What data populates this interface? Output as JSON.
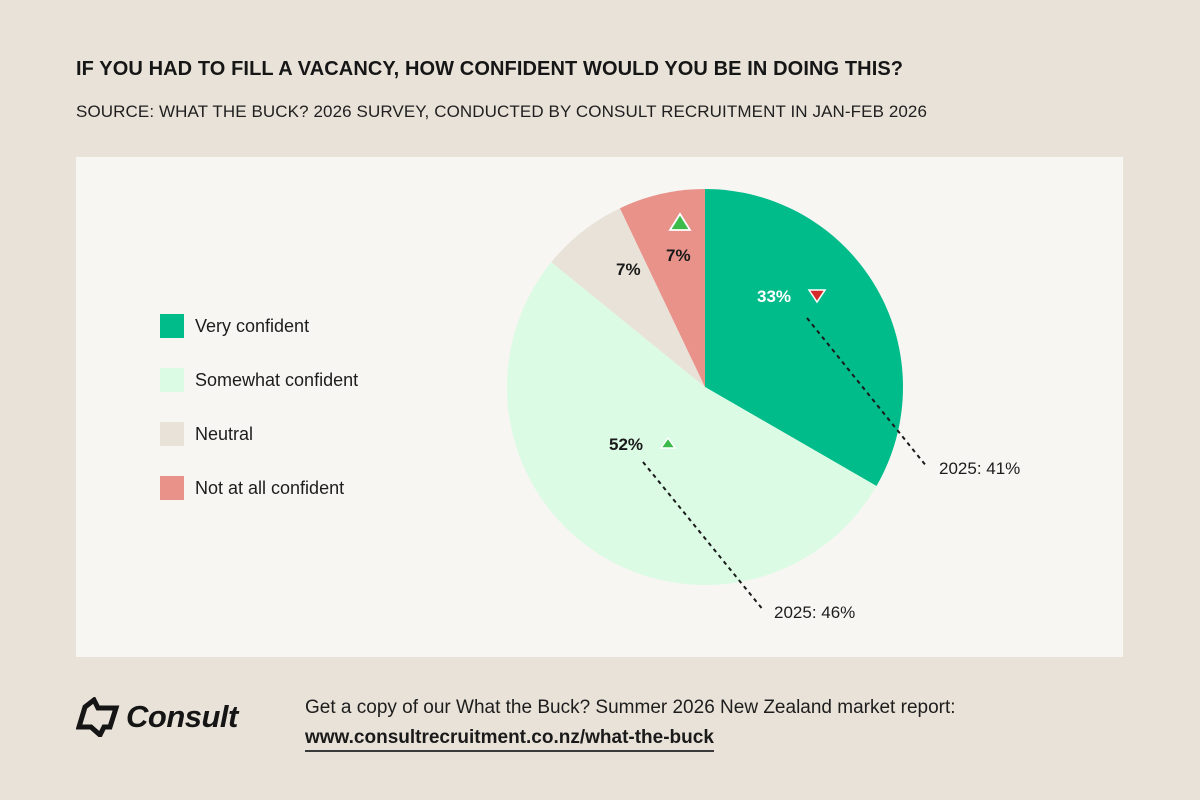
{
  "header": {
    "title": "IF YOU HAD TO FILL A VACANCY, HOW CONFIDENT WOULD YOU BE IN DOING THIS?",
    "source": "SOURCE: WHAT THE BUCK? 2026 SURVEY, CONDUCTED BY CONSULT RECRUITMENT IN JAN-FEB 2026"
  },
  "legend": {
    "items": [
      {
        "label": "Very confident",
        "color": "#00bb8a"
      },
      {
        "label": "Somewhat confident",
        "color": "#dbfbe4"
      },
      {
        "label": "Neutral",
        "color": "#e9e2d8"
      },
      {
        "label": "Not at all confident",
        "color": "#e8928a"
      }
    ]
  },
  "slice_labels": {
    "very_confident": "33%",
    "somewhat_confident": "52%",
    "neutral": "7%",
    "not_at_all": "7%"
  },
  "annotations": {
    "very_confident_prev": "2025: 41%",
    "somewhat_confident_prev": "2025: 46%"
  },
  "colors": {
    "background": "#e9e2d8",
    "panel": "#f7f6f2",
    "up_arrow": "#3dbb4a",
    "down_arrow": "#d42a2a"
  },
  "footer": {
    "logo_text": "Consult",
    "cta_text": "Get a copy of our What the Buck? Summer 2026  New Zealand market report:",
    "cta_link": "www.consultrecruitment.co.nz/what-the-buck"
  },
  "chart_data": {
    "type": "pie",
    "title": "IF YOU HAD TO FILL A VACANCY, HOW CONFIDENT WOULD YOU BE IN DOING THIS?",
    "subtitle": "SOURCE: WHAT THE BUCK? 2026 SURVEY, CONDUCTED BY CONSULT RECRUITMENT IN JAN-FEB 2026",
    "categories": [
      "Very confident",
      "Somewhat confident",
      "Neutral",
      "Not at all confident"
    ],
    "values": [
      33,
      52,
      7,
      7
    ],
    "unit": "%",
    "colors": [
      "#00bb8a",
      "#dbfbe4",
      "#e9e2d8",
      "#e8928a"
    ],
    "previous_year": {
      "Very confident": 41,
      "Somewhat confident": 46
    },
    "trend": {
      "Very confident": "down",
      "Somewhat confident": "up",
      "Neutral": "none",
      "Not at all confident": "up"
    },
    "annotations": [
      "2025: 41%",
      "2025: 46%"
    ],
    "legend_position": "left",
    "start_angle_deg": 0,
    "direction": "clockwise"
  }
}
